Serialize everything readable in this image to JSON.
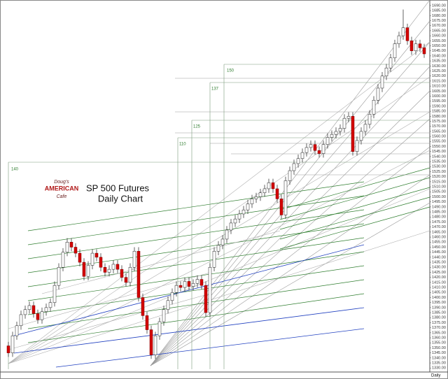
{
  "chart_data": {
    "type": "candlestick",
    "title": "SP 500 Futures",
    "subtitle": "Daily Chart",
    "logo": [
      "Doug's",
      "AMERICAN",
      "Cafe"
    ],
    "timeframe": "Daily",
    "annotations": [
      "140",
      "110",
      "125",
      "137",
      "150"
    ],
    "up_color": "#ffffff",
    "down_color": "#d40000",
    "ylim": [
      1326.7,
      1695.5
    ],
    "yticks": [
      {
        "value": 1690,
        "label": "1690.00"
      },
      {
        "value": 1685,
        "label": "1685.00"
      },
      {
        "value": 1680,
        "label": "1680.00"
      },
      {
        "value": 1675,
        "label": "1675.00"
      },
      {
        "value": 1670,
        "label": "1670.00"
      },
      {
        "value": 1665,
        "label": "1665.00"
      },
      {
        "value": 1660,
        "label": "1660.00"
      },
      {
        "value": 1655,
        "label": "1655.00"
      },
      {
        "value": 1650,
        "label": "1650.00"
      },
      {
        "value": 1645,
        "label": "1645.00"
      },
      {
        "value": 1640,
        "label": "1640.00"
      },
      {
        "value": 1635,
        "label": "1635.00"
      },
      {
        "value": 1630,
        "label": "1630.00"
      },
      {
        "value": 1625,
        "label": "1625.00"
      },
      {
        "value": 1620,
        "label": "1620.00"
      },
      {
        "value": 1615,
        "label": "1615.00"
      },
      {
        "value": 1610,
        "label": "1610.00"
      },
      {
        "value": 1605,
        "label": "1605.00"
      },
      {
        "value": 1600,
        "label": "1600.00"
      },
      {
        "value": 1595,
        "label": "1595.00"
      },
      {
        "value": 1590,
        "label": "1590.00"
      },
      {
        "value": 1585,
        "label": "1585.00"
      },
      {
        "value": 1580,
        "label": "1580.00"
      },
      {
        "value": 1575,
        "label": "1575.00"
      },
      {
        "value": 1570,
        "label": "1570.00"
      },
      {
        "value": 1565,
        "label": "1565.00"
      },
      {
        "value": 1560,
        "label": "1560.00"
      },
      {
        "value": 1555,
        "label": "1555.00"
      },
      {
        "value": 1550,
        "label": "1550.00"
      },
      {
        "value": 1545,
        "label": "1545.00"
      },
      {
        "value": 1540,
        "label": "1540.00"
      },
      {
        "value": 1535,
        "label": "1535.00"
      },
      {
        "value": 1530,
        "label": "1530.00"
      },
      {
        "value": 1525,
        "label": "1525.00"
      },
      {
        "value": 1520,
        "label": "1520.00"
      },
      {
        "value": 1515,
        "label": "1515.00"
      },
      {
        "value": 1510,
        "label": "1510.00"
      },
      {
        "value": 1505,
        "label": "1505.00"
      },
      {
        "value": 1500,
        "label": "1500.00"
      },
      {
        "value": 1495,
        "label": "1495.00"
      },
      {
        "value": 1490,
        "label": "1490.00"
      },
      {
        "value": 1485,
        "label": "1485.00"
      },
      {
        "value": 1480,
        "label": "1480.00"
      },
      {
        "value": 1475,
        "label": "1475.00"
      },
      {
        "value": 1470,
        "label": "1470.00"
      },
      {
        "value": 1465,
        "label": "1465.00"
      },
      {
        "value": 1460,
        "label": "1460.00"
      },
      {
        "value": 1455,
        "label": "1455.00"
      },
      {
        "value": 1450,
        "label": "1450.00"
      },
      {
        "value": 1445,
        "label": "1445.00"
      },
      {
        "value": 1440,
        "label": "1440.00"
      },
      {
        "value": 1435,
        "label": "1435.00"
      },
      {
        "value": 1430,
        "label": "1430.00"
      },
      {
        "value": 1425,
        "label": "1425.00"
      },
      {
        "value": 1420,
        "label": "1420.00"
      },
      {
        "value": 1415,
        "label": "1415.00"
      },
      {
        "value": 1410,
        "label": "1410.00"
      },
      {
        "value": 1405,
        "label": "1405.00"
      },
      {
        "value": 1400,
        "label": "1400.00"
      },
      {
        "value": 1395,
        "label": "1395.00"
      },
      {
        "value": 1390,
        "label": "1390.00"
      },
      {
        "value": 1385,
        "label": "1385.00"
      },
      {
        "value": 1380,
        "label": "1380.00"
      },
      {
        "value": 1375,
        "label": "1375.00"
      },
      {
        "value": 1370,
        "label": "1370.00"
      },
      {
        "value": 1365,
        "label": "1365.00"
      },
      {
        "value": 1360,
        "label": "1360.00"
      },
      {
        "value": 1355,
        "label": "1355.00"
      },
      {
        "value": 1350,
        "label": "1350.00"
      },
      {
        "value": 1345,
        "label": "1345.00"
      },
      {
        "value": 1340,
        "label": "1340.00"
      },
      {
        "value": 1335,
        "label": "1335.00"
      },
      {
        "value": 1330,
        "label": "1330.00"
      }
    ],
    "open": [
      1352,
      1345,
      1362,
      1372,
      1383,
      1388,
      1392,
      1384,
      1378,
      1386,
      1390,
      1395,
      1412,
      1430,
      1445,
      1455,
      1450,
      1444,
      1435,
      1421,
      1432,
      1444,
      1440,
      1430,
      1425,
      1428,
      1433,
      1428,
      1420,
      1415,
      1430,
      1446,
      1400,
      1382,
      1368,
      1343,
      1362,
      1376,
      1388,
      1397,
      1405,
      1412,
      1410,
      1416,
      1411,
      1414,
      1418,
      1412,
      1385,
      1430,
      1446,
      1452,
      1458,
      1467,
      1474,
      1478,
      1483,
      1487,
      1493,
      1498,
      1500,
      1504,
      1508,
      1514,
      1508,
      1498,
      1482,
      1516,
      1526,
      1533,
      1538,
      1544,
      1549,
      1552,
      1546,
      1543,
      1552,
      1559,
      1562,
      1565,
      1568,
      1578,
      1580,
      1545,
      1556,
      1565,
      1572,
      1582,
      1596,
      1608,
      1620,
      1628,
      1638,
      1652,
      1660,
      1668,
      1655,
      1645,
      1652,
      1648
    ],
    "high": [
      1356,
      1366,
      1376,
      1387,
      1392,
      1396,
      1396,
      1388,
      1390,
      1394,
      1399,
      1416,
      1434,
      1449,
      1459,
      1459,
      1454,
      1448,
      1439,
      1436,
      1448,
      1448,
      1444,
      1434,
      1432,
      1437,
      1437,
      1432,
      1424,
      1434,
      1450,
      1450,
      1404,
      1386,
      1372,
      1366,
      1380,
      1392,
      1401,
      1409,
      1416,
      1416,
      1420,
      1420,
      1418,
      1422,
      1422,
      1416,
      1434,
      1450,
      1456,
      1462,
      1471,
      1478,
      1482,
      1487,
      1491,
      1497,
      1502,
      1504,
      1508,
      1512,
      1518,
      1518,
      1512,
      1502,
      1520,
      1530,
      1537,
      1542,
      1548,
      1553,
      1556,
      1556,
      1550,
      1556,
      1563,
      1566,
      1569,
      1572,
      1582,
      1584,
      1584,
      1560,
      1569,
      1576,
      1586,
      1600,
      1612,
      1624,
      1632,
      1642,
      1656,
      1664,
      1686,
      1672,
      1659,
      1656,
      1656,
      1652
    ],
    "low": [
      1341,
      1341,
      1358,
      1368,
      1379,
      1384,
      1380,
      1374,
      1374,
      1382,
      1386,
      1391,
      1408,
      1426,
      1441,
      1446,
      1440,
      1431,
      1417,
      1417,
      1428,
      1436,
      1426,
      1421,
      1421,
      1424,
      1424,
      1416,
      1411,
      1411,
      1426,
      1396,
      1378,
      1364,
      1339,
      1339,
      1358,
      1372,
      1384,
      1393,
      1401,
      1406,
      1406,
      1407,
      1407,
      1410,
      1408,
      1381,
      1381,
      1426,
      1442,
      1448,
      1454,
      1463,
      1470,
      1474,
      1479,
      1483,
      1489,
      1494,
      1496,
      1500,
      1504,
      1504,
      1494,
      1478,
      1478,
      1512,
      1522,
      1529,
      1534,
      1540,
      1545,
      1542,
      1539,
      1539,
      1548,
      1555,
      1558,
      1561,
      1564,
      1574,
      1541,
      1541,
      1552,
      1561,
      1568,
      1578,
      1592,
      1604,
      1616,
      1624,
      1634,
      1648,
      1656,
      1651,
      1641,
      1641,
      1644,
      1638
    ],
    "close": [
      1345,
      1362,
      1372,
      1383,
      1388,
      1392,
      1384,
      1378,
      1386,
      1390,
      1395,
      1412,
      1430,
      1445,
      1455,
      1450,
      1444,
      1435,
      1421,
      1432,
      1444,
      1440,
      1430,
      1425,
      1428,
      1433,
      1428,
      1420,
      1415,
      1430,
      1446,
      1400,
      1382,
      1368,
      1343,
      1362,
      1376,
      1388,
      1397,
      1405,
      1412,
      1410,
      1416,
      1411,
      1414,
      1418,
      1412,
      1385,
      1430,
      1446,
      1452,
      1458,
      1467,
      1474,
      1478,
      1483,
      1487,
      1493,
      1498,
      1500,
      1504,
      1508,
      1514,
      1508,
      1498,
      1482,
      1516,
      1526,
      1533,
      1538,
      1544,
      1549,
      1552,
      1546,
      1543,
      1552,
      1559,
      1562,
      1565,
      1568,
      1578,
      1580,
      1545,
      1556,
      1565,
      1572,
      1582,
      1596,
      1608,
      1620,
      1628,
      1638,
      1652,
      1660,
      1668,
      1655,
      1645,
      1652,
      1648,
      1642
    ]
  }
}
